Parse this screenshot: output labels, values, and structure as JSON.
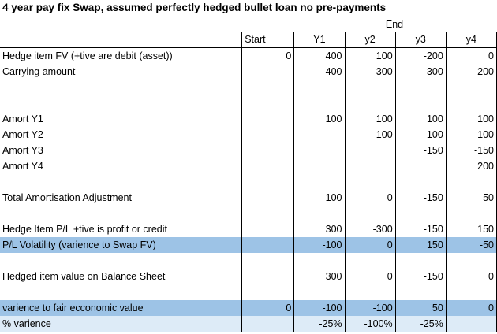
{
  "title": "4 year pay fix Swap, assumed perfectly hedged bullet loan no pre-payments",
  "end_label": "End",
  "columns": [
    "Start",
    "Y1",
    "y2",
    "y3",
    "y4"
  ],
  "rows": [
    {
      "label": "Hedge item FV (+tive are debit (asset))",
      "values": [
        "0",
        "400",
        "100",
        "-200",
        "0"
      ],
      "style": ""
    },
    {
      "label": "Carrying amount",
      "values": [
        "",
        "400",
        "-300",
        "-300",
        "200"
      ],
      "style": ""
    },
    {
      "label": "",
      "values": [
        "",
        "",
        "",
        "",
        ""
      ],
      "style": ""
    },
    {
      "label": "",
      "values": [
        "",
        "",
        "",
        "",
        ""
      ],
      "style": ""
    },
    {
      "label": "Amort Y1",
      "values": [
        "",
        "100",
        "100",
        "100",
        "100"
      ],
      "style": ""
    },
    {
      "label": "Amort Y2",
      "values": [
        "",
        "",
        "-100",
        "-100",
        "-100"
      ],
      "style": ""
    },
    {
      "label": "Amort Y3",
      "values": [
        "",
        "",
        "",
        "-150",
        "-150"
      ],
      "style": ""
    },
    {
      "label": "Amort Y4",
      "values": [
        "",
        "",
        "",
        "",
        "200"
      ],
      "style": ""
    },
    {
      "label": "",
      "values": [
        "",
        "",
        "",
        "",
        ""
      ],
      "style": ""
    },
    {
      "label": "Total Amortisation Adjustment",
      "values": [
        "",
        "100",
        "0",
        "-150",
        "50"
      ],
      "style": ""
    },
    {
      "label": "",
      "values": [
        "",
        "",
        "",
        "",
        ""
      ],
      "style": ""
    },
    {
      "label": "Hedge Item P/L +tive is profit  or credit",
      "values": [
        "",
        "300",
        "-300",
        "-150",
        "150"
      ],
      "style": ""
    },
    {
      "label": "P/L Volatility (varience to Swap FV)",
      "values": [
        "",
        "-100",
        "0",
        "150",
        "-50"
      ],
      "style": "hl-dark"
    },
    {
      "label": "",
      "values": [
        "",
        "",
        "",
        "",
        ""
      ],
      "style": ""
    },
    {
      "label": "Hedged item value on Balance Sheet",
      "values": [
        "",
        "300",
        "0",
        "-150",
        "0"
      ],
      "style": ""
    },
    {
      "label": "",
      "values": [
        "",
        "",
        "",
        "",
        ""
      ],
      "style": ""
    },
    {
      "label": "varience to fair ecconomic value",
      "values": [
        "0",
        "-100",
        "-100",
        "50",
        "0"
      ],
      "style": "hl-dark"
    },
    {
      "label": "% varience",
      "values": [
        "",
        "-25%",
        "-100%",
        "-25%",
        ""
      ],
      "style": "hl-light"
    }
  ]
}
